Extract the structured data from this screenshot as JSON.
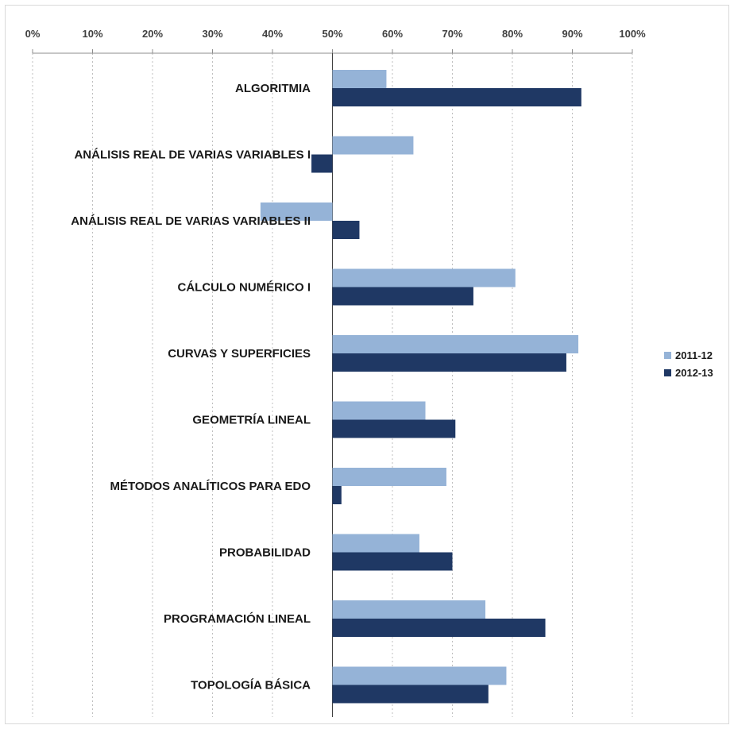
{
  "chart_data": {
    "type": "bar",
    "orientation": "horizontal",
    "baseline": 50,
    "categories": [
      "ALGORITMIA",
      "ANÁLISIS REAL DE VARIAS VARIABLES I",
      "ANÁLISIS REAL DE VARIAS VARIABLES II",
      "CÁLCULO NUMÉRICO  I",
      "CURVAS Y SUPERFICIES",
      "GEOMETRÍA LINEAL",
      "MÉTODOS ANALÍTICOS PARA  EDO",
      "PROBABILIDAD",
      "PROGRAMACIÓN LINEAL",
      "TOPOLOGÍA BÁSICA"
    ],
    "series": [
      {
        "name": "2011-12",
        "color": "#95b3d7",
        "values": [
          59,
          63.5,
          38,
          80.5,
          91,
          65.5,
          69,
          64.5,
          75.5,
          79
        ]
      },
      {
        "name": "2012-13",
        "color": "#1f3864",
        "values": [
          91.5,
          46.5,
          54.5,
          73.5,
          89,
          70.5,
          51.5,
          70,
          85.5,
          76
        ]
      }
    ],
    "x_ticks": [
      "0%",
      "10%",
      "20%",
      "30%",
      "40%",
      "50%",
      "60%",
      "70%",
      "80%",
      "90%",
      "100%"
    ],
    "xlim": [
      0,
      100
    ],
    "x_axis_position": "top",
    "grid": true,
    "legend_position": "right"
  }
}
